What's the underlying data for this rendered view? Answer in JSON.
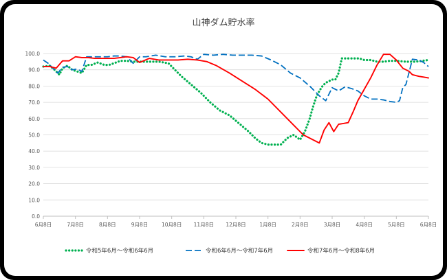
{
  "chart_data": {
    "type": "line",
    "title": "山神ダム貯水率",
    "xlabel": "",
    "ylabel": "",
    "ylim": [
      0,
      100
    ],
    "yticks": [
      "0.0",
      "10.0",
      "20.0",
      "30.0",
      "40.0",
      "50.0",
      "60.0",
      "70.0",
      "80.0",
      "90.0",
      "100.0"
    ],
    "x_ticks": [
      "6月8日",
      "7月8日",
      "8月8日",
      "9月8日",
      "10月8日",
      "11月8日",
      "12月8日",
      "1月8日",
      "2月8日",
      "3月8日",
      "4月8日",
      "5月8日",
      "6月8日"
    ],
    "grid": "horizontal",
    "legend_position": "bottom",
    "series": [
      {
        "name": "令和5年6月～令和6年6月",
        "color": "#00b050",
        "style": "dotted",
        "x": [
          0,
          0.2,
          0.35,
          0.5,
          0.6,
          0.75,
          0.9,
          1.05,
          1.2,
          1.35,
          1.5,
          1.7,
          1.9,
          2.05,
          2.2,
          2.4,
          2.6,
          2.8,
          3.0,
          3.3,
          3.6,
          3.9,
          4.1,
          4.3,
          4.6,
          4.9,
          5.2,
          5.5,
          5.8,
          6.1,
          6.4,
          6.6,
          6.8,
          7.0,
          7.2,
          7.4,
          7.6,
          7.8,
          8.0,
          8.15,
          8.3,
          8.4,
          8.5,
          8.6,
          8.7,
          8.8,
          8.9,
          9.0,
          9.1,
          9.2,
          9.3,
          9.45,
          9.55,
          9.65,
          9.75,
          9.85,
          10.0,
          10.2,
          10.4,
          10.6,
          10.8,
          11.0,
          11.3,
          11.6,
          11.8,
          12.0
        ],
        "values": [
          92,
          92.5,
          90,
          87,
          91,
          92.5,
          90,
          89,
          88,
          93,
          93,
          94.5,
          93,
          93,
          94,
          95.5,
          95.5,
          95,
          95,
          95,
          95,
          94,
          90,
          86,
          81,
          76,
          70,
          65,
          62,
          57,
          52,
          48,
          45,
          44,
          44,
          44,
          48,
          50,
          47,
          52,
          60,
          67,
          73,
          77,
          80,
          82,
          83,
          84,
          84,
          88,
          97,
          97,
          97,
          97,
          97,
          97,
          96,
          96,
          95,
          95,
          95.5,
          95.5,
          95,
          95,
          95.5,
          96
        ]
      },
      {
        "name": "令和6年6月～令和7年6月",
        "color": "#0070c0",
        "style": "dashed",
        "x": [
          0,
          0.15,
          0.3,
          0.45,
          0.6,
          0.75,
          0.9,
          1.05,
          1.2,
          1.35,
          1.5,
          1.7,
          2.0,
          2.2,
          2.4,
          2.6,
          2.8,
          3.0,
          3.2,
          3.5,
          3.8,
          4.1,
          4.4,
          4.6,
          4.8,
          5.0,
          5.3,
          5.6,
          5.9,
          6.2,
          6.5,
          6.8,
          7.1,
          7.4,
          7.7,
          8.0,
          8.3,
          8.6,
          8.8,
          9.0,
          9.2,
          9.4,
          9.6,
          9.8,
          10.0,
          10.2,
          10.4,
          10.6,
          10.8,
          11.0,
          11.1,
          11.2,
          11.3,
          11.5,
          11.7,
          11.85,
          12.0
        ],
        "values": [
          96,
          94,
          91,
          88,
          91.5,
          92,
          90,
          90.5,
          89,
          98,
          98,
          98,
          98,
          98.5,
          98.5,
          98,
          94,
          98,
          98,
          99,
          98,
          98,
          98.5,
          98,
          96.5,
          99.5,
          99,
          99.5,
          99,
          99,
          99,
          98.5,
          96,
          93,
          88,
          85,
          80,
          74,
          71,
          79,
          77,
          79.5,
          78.5,
          77,
          74,
          72,
          72,
          71.5,
          70.5,
          70,
          71,
          79,
          81,
          96.5,
          96,
          94.5,
          92
        ]
      },
      {
        "name": "令和7年6月～令和8年6月",
        "color": "#ff0000",
        "style": "solid",
        "x": [
          0,
          0.2,
          0.4,
          0.6,
          0.8,
          1.0,
          1.2,
          1.4,
          1.6,
          1.8,
          2.0,
          2.2,
          2.4,
          2.6,
          2.8,
          3.0,
          3.3,
          3.6,
          3.9,
          4.2,
          4.5,
          4.8,
          5.1,
          5.4,
          5.8,
          6.2,
          6.6,
          7.0,
          7.4,
          7.8,
          8.1,
          8.4,
          8.6,
          8.75,
          8.9,
          9.05,
          9.2,
          9.35,
          9.5,
          9.65,
          9.8,
          10.0,
          10.2,
          10.4,
          10.6,
          10.8,
          11.0,
          11.2,
          11.4,
          11.5,
          11.7,
          11.85,
          12.0
        ],
        "values": [
          92,
          92,
          91,
          95.5,
          95.5,
          98,
          97.5,
          97.5,
          97,
          97,
          97,
          97,
          97.5,
          98,
          97.5,
          94.5,
          97,
          96,
          96,
          96,
          96.5,
          96,
          95,
          92.5,
          88,
          83,
          78,
          72,
          64,
          56,
          50,
          47,
          45,
          53,
          57.5,
          52,
          56.5,
          57,
          57.5,
          64,
          71,
          78,
          85,
          93,
          99.5,
          99.5,
          96,
          91,
          89,
          87,
          86,
          85.5,
          85
        ]
      }
    ]
  }
}
